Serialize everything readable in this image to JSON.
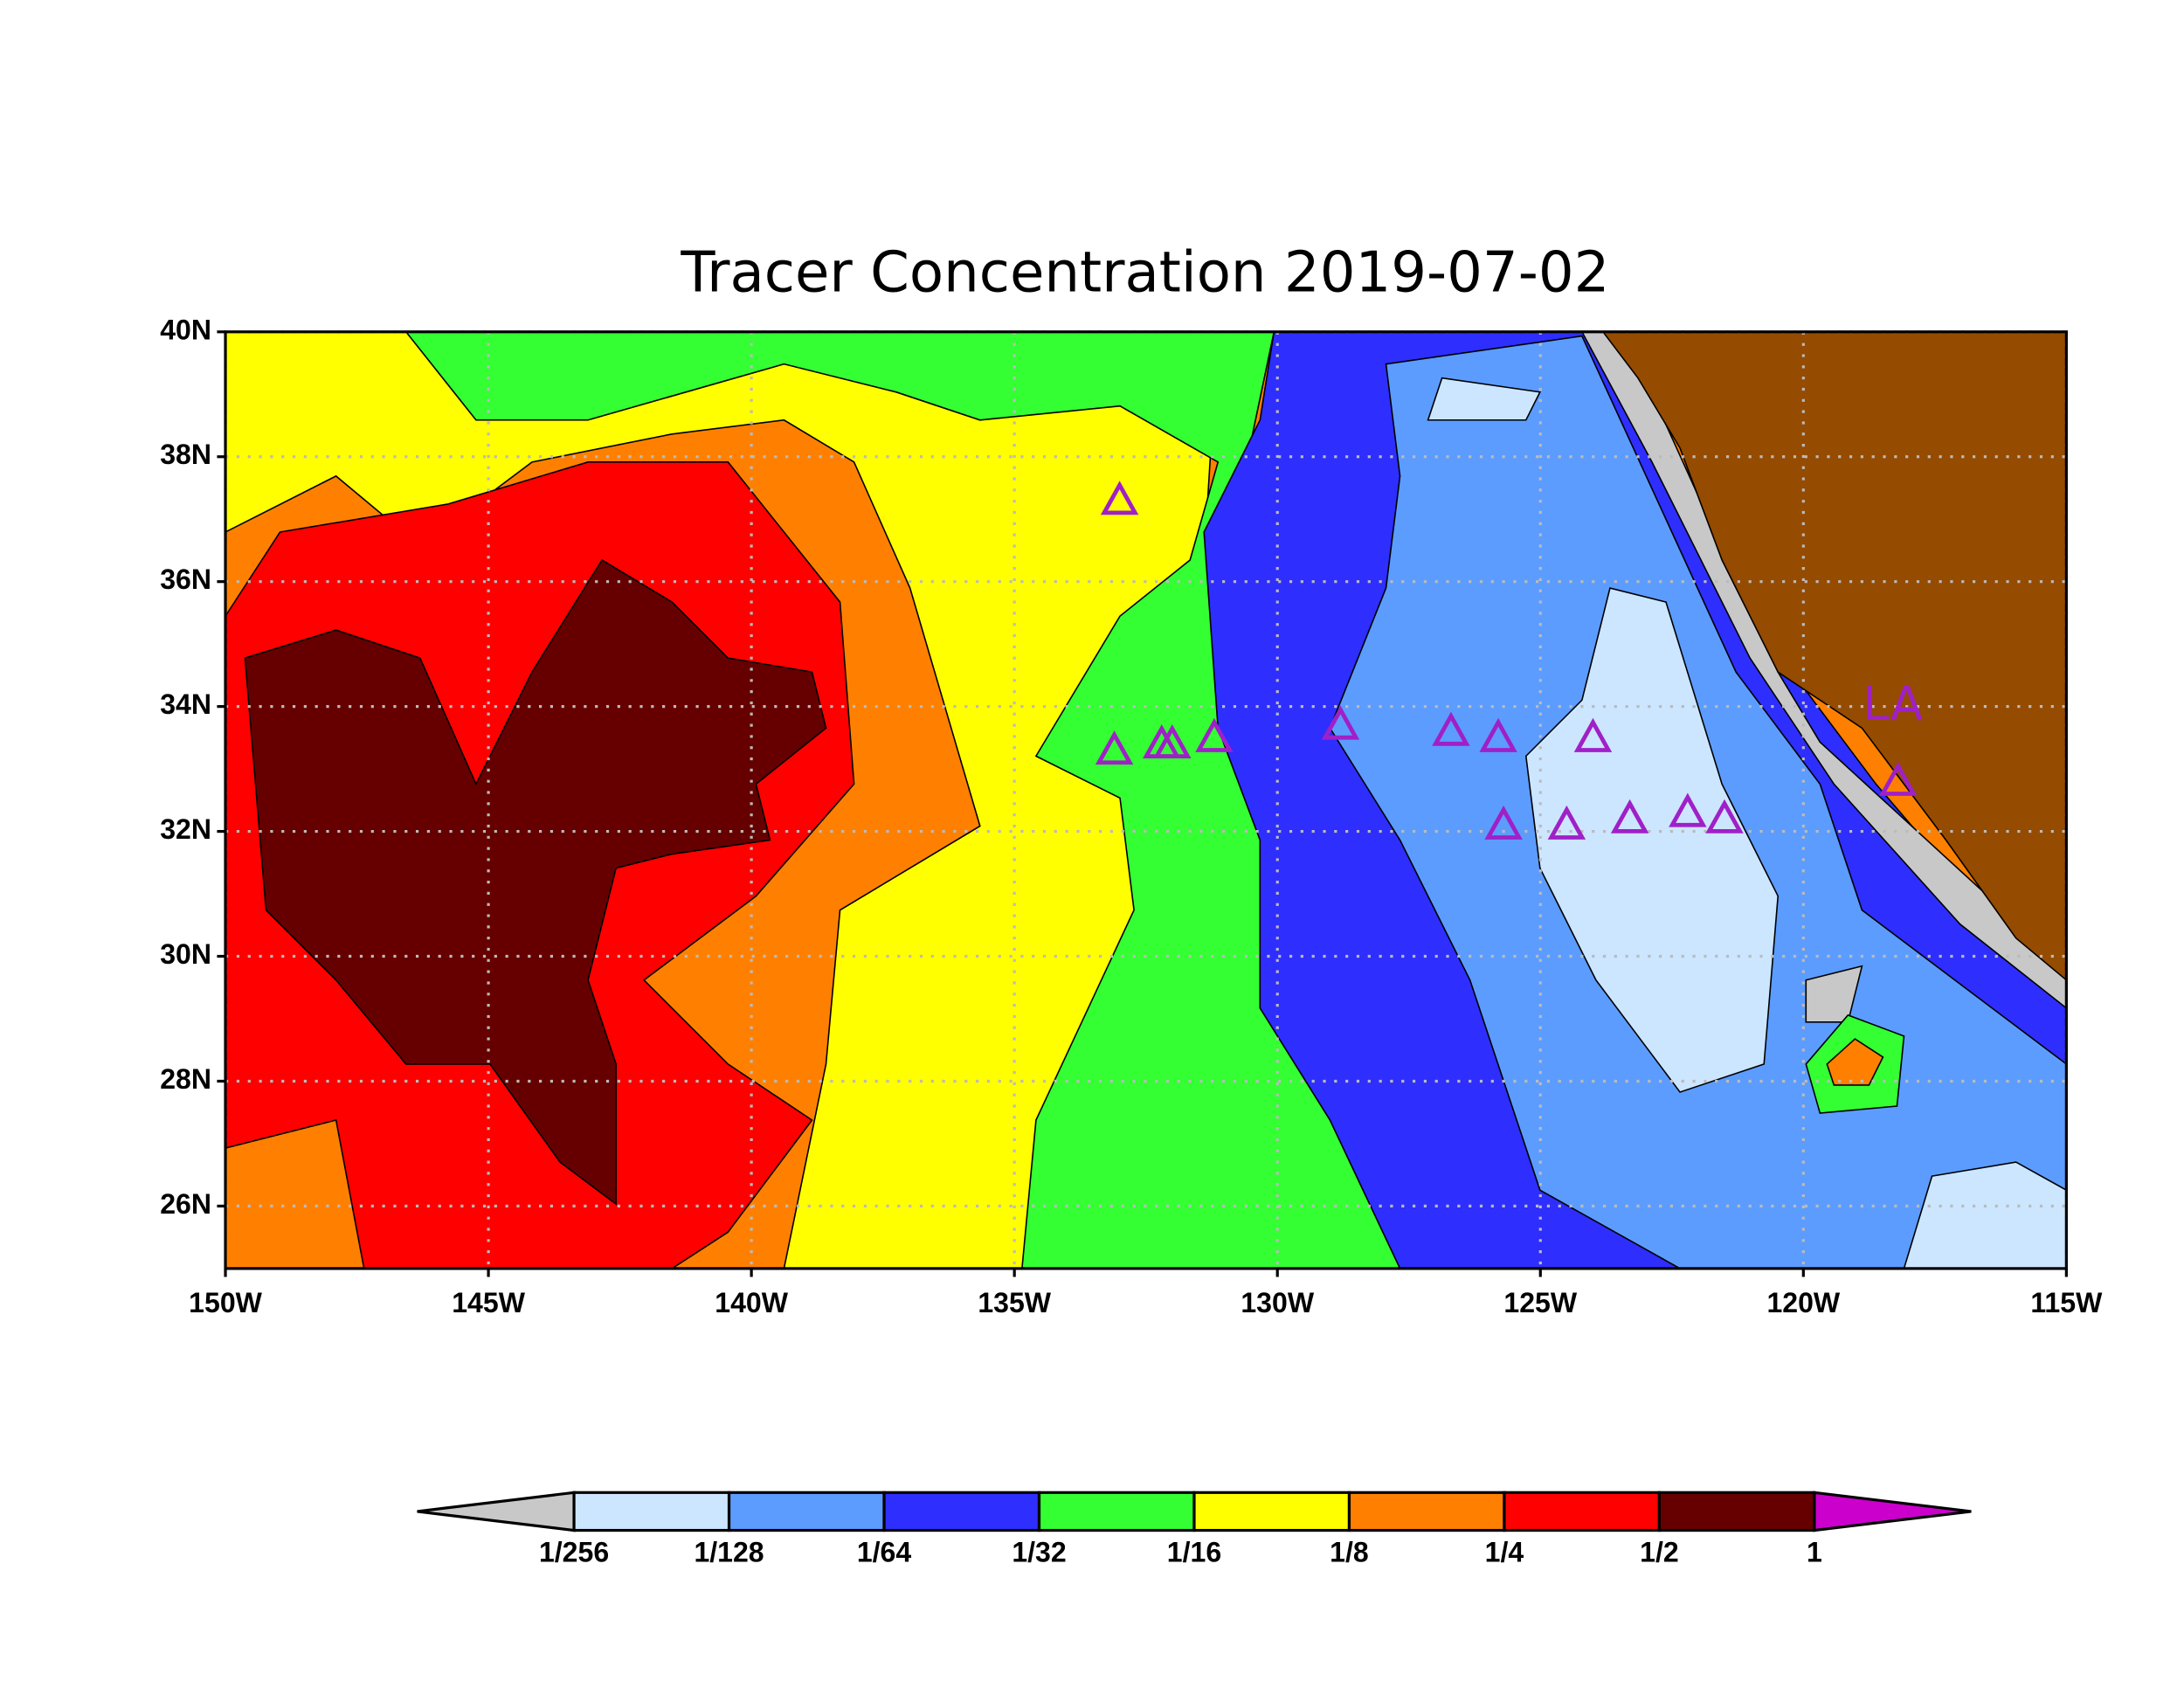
{
  "title": "Tracer Concentration 2019-07-02",
  "map": {
    "xlim": [
      -150,
      -115
    ],
    "ylim": [
      25,
      40
    ],
    "xticks": [
      {
        "value": -150,
        "label": "150W"
      },
      {
        "value": -145,
        "label": "145W"
      },
      {
        "value": -140,
        "label": "140W"
      },
      {
        "value": -135,
        "label": "135W"
      },
      {
        "value": -130,
        "label": "130W"
      },
      {
        "value": -125,
        "label": "125W"
      },
      {
        "value": -120,
        "label": "120W"
      },
      {
        "value": -115,
        "label": "115W"
      }
    ],
    "yticks": [
      {
        "value": 26,
        "label": "26N"
      },
      {
        "value": 28,
        "label": "28N"
      },
      {
        "value": 30,
        "label": "30N"
      },
      {
        "value": 32,
        "label": "32N"
      },
      {
        "value": 34,
        "label": "34N"
      },
      {
        "value": 36,
        "label": "36N"
      },
      {
        "value": 38,
        "label": "38N"
      },
      {
        "value": 40,
        "label": "40N"
      }
    ],
    "grid": true,
    "marker_color": "#a020c8",
    "markers": [
      {
        "lon": -133.0,
        "lat": 37.3
      },
      {
        "lon": -133.1,
        "lat": 33.3
      },
      {
        "lon": -132.2,
        "lat": 33.4
      },
      {
        "lon": -132.0,
        "lat": 33.4
      },
      {
        "lon": -131.2,
        "lat": 33.5
      },
      {
        "lon": -128.8,
        "lat": 33.7
      },
      {
        "lon": -126.7,
        "lat": 33.6
      },
      {
        "lon": -125.8,
        "lat": 33.5
      },
      {
        "lon": -124.0,
        "lat": 33.5
      },
      {
        "lon": -125.7,
        "lat": 32.1
      },
      {
        "lon": -124.5,
        "lat": 32.1
      },
      {
        "lon": -123.3,
        "lat": 32.2
      },
      {
        "lon": -122.2,
        "lat": 32.3
      },
      {
        "lon": -121.5,
        "lat": 32.2
      },
      {
        "lon": -118.2,
        "lat": 32.8
      }
    ],
    "place_label": {
      "text": "LA",
      "lon": -118.3,
      "lat": 34.0
    }
  },
  "colorbar": {
    "levels": [
      {
        "value": 0.00390625,
        "label": "1/256"
      },
      {
        "value": 0.0078125,
        "label": "1/128"
      },
      {
        "value": 0.015625,
        "label": "1/64"
      },
      {
        "value": 0.03125,
        "label": "1/32"
      },
      {
        "value": 0.0625,
        "label": "1/16"
      },
      {
        "value": 0.125,
        "label": "1/8"
      },
      {
        "value": 0.25,
        "label": "1/4"
      },
      {
        "value": 0.5,
        "label": "1/2"
      },
      1
    ],
    "colors": [
      "#c8c8c8",
      "#cce6ff",
      "#5c9cff",
      "#2e2eff",
      "#33ff33",
      "#ffff00",
      "#ff8000",
      "#ff0000",
      "#660000",
      "#cc00cc"
    ]
  }
}
